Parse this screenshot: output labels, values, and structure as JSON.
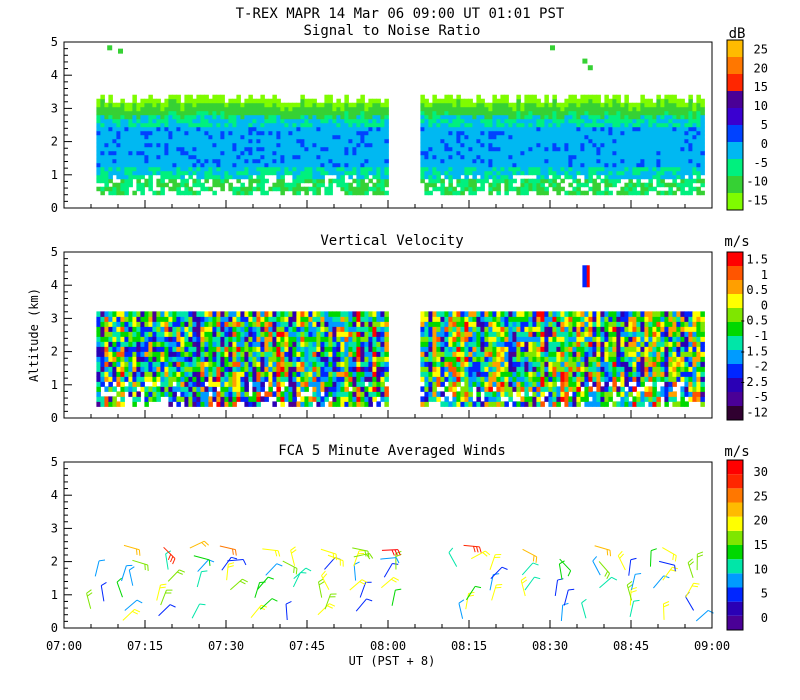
{
  "header": {
    "main_title": "T-REX   MAPR 14 Mar 06   09:00 UT   01:01   PST"
  },
  "chart_data": [
    {
      "type": "heatmap",
      "title": "Signal to Noise Ratio",
      "ylabel": "",
      "ylim": [
        0,
        5
      ],
      "yticks": [
        "0",
        "1",
        "2",
        "3",
        "4",
        "5"
      ],
      "colorbar": {
        "unit": "dB",
        "labels": [
          "-15",
          "-10",
          "-5",
          "0",
          "5",
          "10",
          "15",
          "20",
          "25"
        ],
        "colors": [
          "#7ffc00",
          "#36d134",
          "#00f07e",
          "#00b8f2",
          "#0042ff",
          "#3a00d0",
          "#4a0096",
          "#ff2600",
          "#ff7700",
          "#ffbb00"
        ]
      },
      "data_gap": [
        "08:00",
        "08:05"
      ],
      "top_range_km": 3.2,
      "core_band_km": [
        1.2,
        2.4
      ]
    },
    {
      "type": "heatmap",
      "title": "Vertical Velocity",
      "ylabel": "Altitude (km)",
      "ylim": [
        0,
        5
      ],
      "yticks": [
        "0",
        "1",
        "2",
        "3",
        "4",
        "5"
      ],
      "colorbar": {
        "unit": "m/s",
        "labels": [
          "-12",
          "-5",
          "-2.5",
          "-2",
          "-1.5",
          "-1",
          "-0.5",
          "0",
          "0.5",
          "1",
          "1.5"
        ],
        "colors": [
          "#300030",
          "#4a0096",
          "#2a00b5",
          "#0026ff",
          "#009bff",
          "#00e6a8",
          "#00d800",
          "#7fe600",
          "#ffff00",
          "#ff9f00",
          "#ff5500",
          "#ff0000"
        ]
      },
      "data_gap": [
        "08:00",
        "08:05"
      ],
      "top_range_km": 3.2
    },
    {
      "type": "scatter",
      "title": "FCA 5 Minute Averaged Winds",
      "xlabel": "UT  (PST + 8)",
      "ylim": [
        0,
        5
      ],
      "yticks": [
        "0",
        "1",
        "2",
        "3",
        "4",
        "5"
      ],
      "xticks": [
        "07:00",
        "07:15",
        "07:30",
        "07:45",
        "08:00",
        "08:15",
        "08:30",
        "08:45",
        "09:00"
      ],
      "x_range_minutes": [
        0,
        120
      ],
      "colorbar": {
        "unit": "m/s",
        "labels": [
          "0",
          "5",
          "10",
          "15",
          "20",
          "25",
          "30"
        ],
        "colors": [
          "#4a0096",
          "#2a00b5",
          "#0026ff",
          "#009bff",
          "#00e6a8",
          "#00d800",
          "#7fe600",
          "#ffff00",
          "#ffbb00",
          "#ff7700",
          "#ff2600",
          "#ff0000"
        ]
      },
      "barb_times_min": [
        6,
        12,
        18,
        24,
        30,
        36,
        42,
        48,
        54,
        60,
        74,
        80,
        86,
        92,
        98,
        104,
        110,
        116
      ],
      "barb_heights_km": [
        0.3,
        0.6,
        0.9,
        1.2,
        1.5,
        1.8,
        2.1,
        2.4
      ]
    }
  ]
}
